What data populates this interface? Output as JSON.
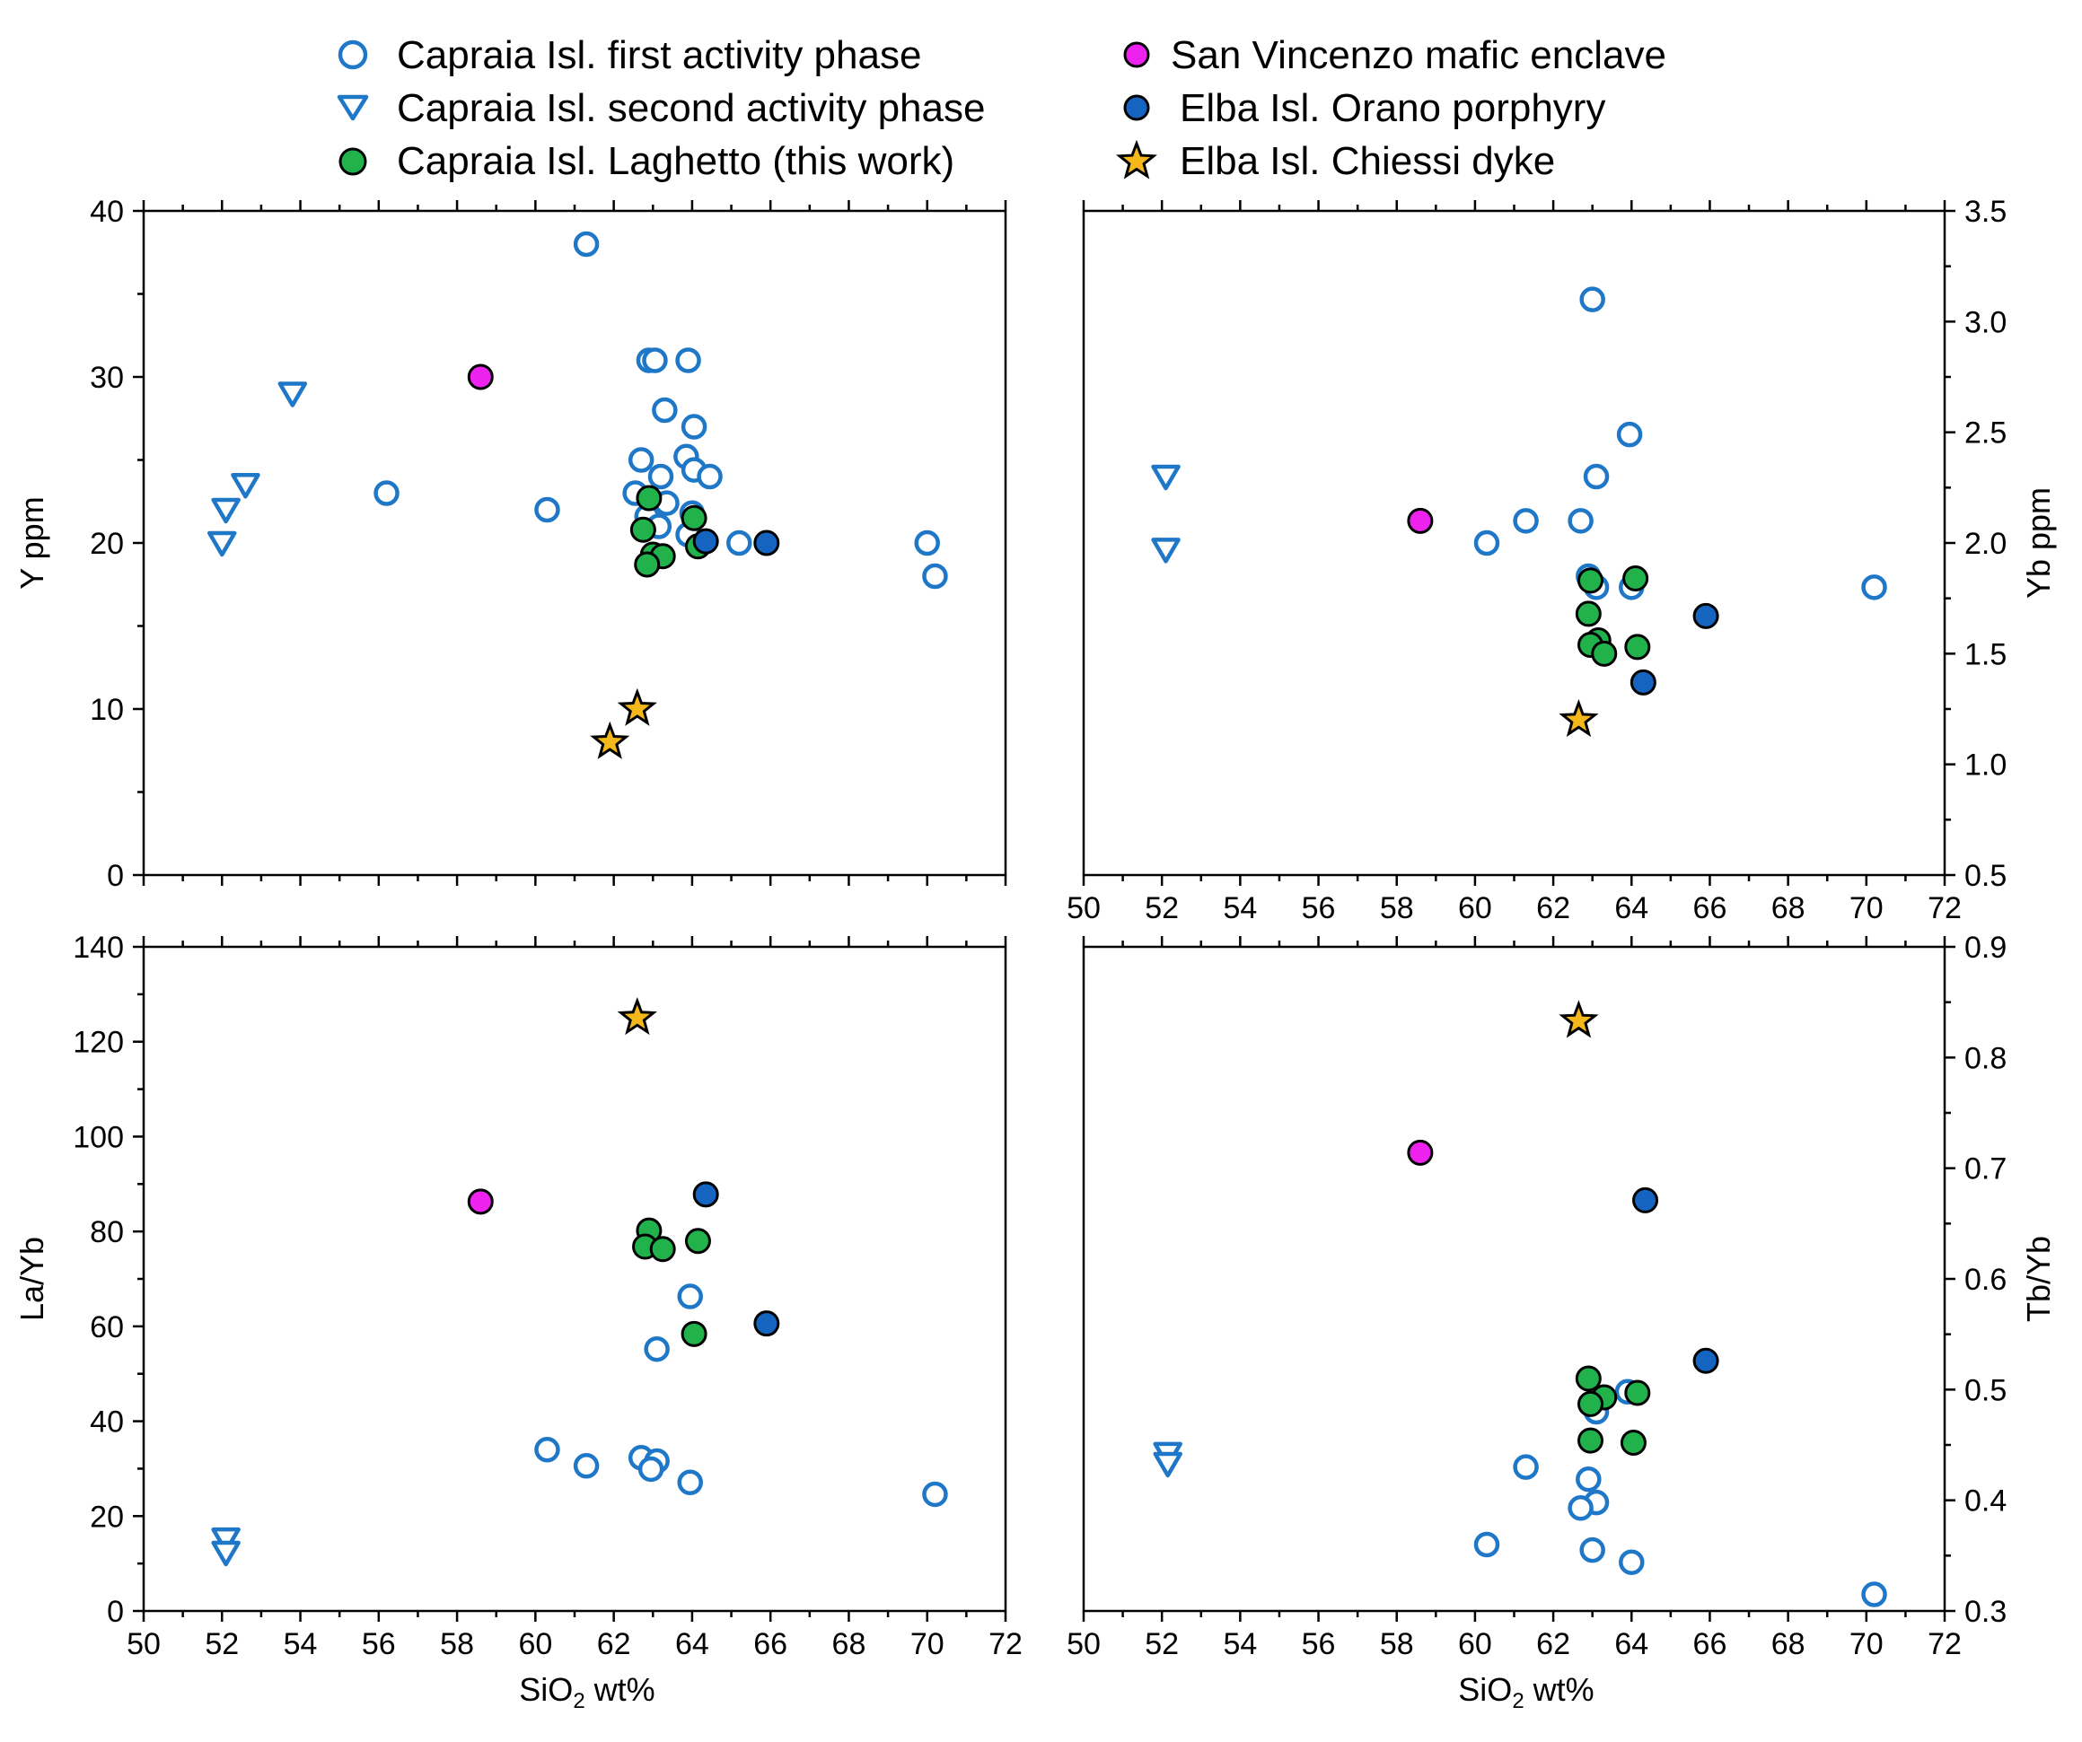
{
  "legend": [
    {
      "key": "cap1",
      "label": "Capraia Isl. first activity phase"
    },
    {
      "key": "cap2",
      "label": "Capraia Isl. second activity phase"
    },
    {
      "key": "lag",
      "label": "Capraia Isl. Laghetto (this work)"
    },
    {
      "key": "svm",
      "label": "San Vincenzo mafic  enclave"
    },
    {
      "key": "elo",
      "label": "Elba Isl. Orano porphyry"
    },
    {
      "key": "elc",
      "label": "Elba Isl. Chiessi dyke"
    }
  ],
  "colors": {
    "blue": "#1f77c8",
    "green": "#22b24c",
    "magenta": "#ee22ee",
    "darkblue": "#1565c0",
    "gold": "#f5b81a"
  },
  "x_label": {
    "main": "SiO",
    "sub": "2",
    "rest": " wt%"
  },
  "chart_data": [
    {
      "type": "scatter",
      "name": "Y vs SiO2",
      "ylabel": "Y ppm",
      "xlim": [
        50,
        72
      ],
      "ylim": [
        0,
        40
      ],
      "yaxis": "left",
      "xticks": [
        50,
        52,
        54,
        56,
        58,
        60,
        62,
        64,
        66,
        68,
        70,
        72
      ],
      "yticks": [
        0,
        10,
        20,
        30,
        40
      ],
      "ytick_labels": [
        "0",
        "10",
        "20",
        "30",
        "40"
      ],
      "show_xlabels": false,
      "series": {
        "cap1": [
          [
            61.3,
            38
          ],
          [
            62.9,
            31
          ],
          [
            63.05,
            31
          ],
          [
            63.9,
            31
          ],
          [
            63.3,
            28
          ],
          [
            64.05,
            27
          ],
          [
            62.7,
            25
          ],
          [
            63.85,
            25.2
          ],
          [
            64.05,
            24.4
          ],
          [
            63.2,
            24
          ],
          [
            64.45,
            24
          ],
          [
            56.2,
            23
          ],
          [
            62.55,
            23
          ],
          [
            63.35,
            22.4
          ],
          [
            60.3,
            22
          ],
          [
            62.85,
            21.6
          ],
          [
            63.15,
            21
          ],
          [
            64.0,
            21.8
          ],
          [
            63.9,
            20.5
          ],
          [
            65.2,
            20
          ],
          [
            70.0,
            20
          ],
          [
            70.2,
            18
          ]
        ],
        "cap2": [
          [
            53.8,
            29
          ],
          [
            52.6,
            23.5
          ],
          [
            52.1,
            22
          ],
          [
            52.0,
            20
          ]
        ],
        "lag": [
          [
            62.9,
            22.7
          ],
          [
            62.75,
            20.8
          ],
          [
            64.05,
            21.5
          ],
          [
            64.15,
            19.8
          ],
          [
            63.0,
            19.3
          ],
          [
            63.25,
            19.2
          ],
          [
            62.85,
            18.7
          ]
        ],
        "svm": [
          [
            58.6,
            30
          ]
        ],
        "elo": [
          [
            64.35,
            20.1
          ],
          [
            65.9,
            20
          ]
        ],
        "elc": [
          [
            62.6,
            10
          ],
          [
            61.9,
            8
          ]
        ]
      }
    },
    {
      "type": "scatter",
      "name": "Yb vs SiO2",
      "ylabel": "Yb ppm",
      "xlim": [
        50,
        72
      ],
      "ylim": [
        0.5,
        3.5
      ],
      "yaxis": "right",
      "xticks": [
        50,
        52,
        54,
        56,
        58,
        60,
        62,
        64,
        66,
        68,
        70,
        72
      ],
      "yticks": [
        0.5,
        1.0,
        1.5,
        2.0,
        2.5,
        3.0,
        3.5
      ],
      "ytick_labels": [
        "0.5",
        "1.0",
        "1.5",
        "2.0",
        "2.5",
        "3.0",
        "3.5"
      ],
      "show_xlabels": true,
      "series": {
        "cap1": [
          [
            63.0,
            3.1
          ],
          [
            63.95,
            2.49
          ],
          [
            63.1,
            2.3
          ],
          [
            61.3,
            2.1
          ],
          [
            62.7,
            2.1
          ],
          [
            60.3,
            2.0
          ],
          [
            62.9,
            1.85
          ],
          [
            63.1,
            1.8
          ],
          [
            64.0,
            1.8
          ],
          [
            70.2,
            1.8
          ]
        ],
        "cap2": [
          [
            52.1,
            2.3
          ],
          [
            52.1,
            1.97
          ]
        ],
        "lag": [
          [
            62.95,
            1.83
          ],
          [
            64.1,
            1.84
          ],
          [
            62.9,
            1.68
          ],
          [
            63.15,
            1.56
          ],
          [
            62.95,
            1.54
          ],
          [
            63.3,
            1.5
          ],
          [
            64.15,
            1.53
          ]
        ],
        "svm": [
          [
            58.6,
            2.1
          ]
        ],
        "elo": [
          [
            65.9,
            1.67
          ],
          [
            64.3,
            1.37
          ]
        ],
        "elc": [
          [
            62.65,
            1.2
          ]
        ]
      }
    },
    {
      "type": "scatter",
      "name": "La/Yb vs SiO2",
      "ylabel": "La/Yb",
      "xlim": [
        50,
        72
      ],
      "ylim": [
        0,
        140
      ],
      "yaxis": "left",
      "xticks": [
        50,
        52,
        54,
        56,
        58,
        60,
        62,
        64,
        66,
        68,
        70,
        72
      ],
      "yticks": [
        0,
        20,
        40,
        60,
        80,
        100,
        120,
        140
      ],
      "ytick_labels": [
        "0",
        "20",
        "40",
        "60",
        "80",
        "100",
        "120",
        "140"
      ],
      "show_xlabels": true,
      "series": {
        "cap1": [
          [
            63.95,
            66.3
          ],
          [
            63.1,
            55.2
          ],
          [
            60.3,
            34
          ],
          [
            61.3,
            30.6
          ],
          [
            62.7,
            32.3
          ],
          [
            63.1,
            31.6
          ],
          [
            62.95,
            29.9
          ],
          [
            63.95,
            27.1
          ],
          [
            70.2,
            24.6
          ]
        ],
        "cap2": [
          [
            52.1,
            15.1
          ],
          [
            52.1,
            12.3
          ]
        ],
        "lag": [
          [
            62.9,
            80.2
          ],
          [
            62.8,
            76.8
          ],
          [
            63.25,
            76.3
          ],
          [
            64.15,
            78
          ],
          [
            64.05,
            58.4
          ]
        ],
        "svm": [
          [
            58.6,
            86.3
          ]
        ],
        "elo": [
          [
            64.35,
            87.8
          ],
          [
            65.9,
            60.6
          ]
        ],
        "elc": [
          [
            62.6,
            125
          ]
        ]
      }
    },
    {
      "type": "scatter",
      "name": "Tb/Yb vs SiO2",
      "ylabel": "Tb/Yb",
      "xlim": [
        50,
        72
      ],
      "ylim": [
        0.3,
        0.9
      ],
      "yaxis": "right",
      "xticks": [
        50,
        52,
        54,
        56,
        58,
        60,
        62,
        64,
        66,
        68,
        70,
        72
      ],
      "yticks": [
        0.3,
        0.4,
        0.5,
        0.6,
        0.7,
        0.8,
        0.9
      ],
      "ytick_labels": [
        "0.3",
        "0.4",
        "0.5",
        "0.6",
        "0.7",
        "0.8",
        "0.9"
      ],
      "show_xlabels": true,
      "series": {
        "cap1": [
          [
            63.9,
            0.498
          ],
          [
            63.1,
            0.48
          ],
          [
            61.3,
            0.43
          ],
          [
            62.9,
            0.419
          ],
          [
            63.1,
            0.398
          ],
          [
            62.7,
            0.393
          ],
          [
            60.3,
            0.36
          ],
          [
            63.0,
            0.355
          ],
          [
            64.0,
            0.344
          ],
          [
            70.2,
            0.315
          ]
        ],
        "cap2": [
          [
            52.15,
            0.442
          ],
          [
            52.15,
            0.433
          ]
        ],
        "lag": [
          [
            62.9,
            0.51
          ],
          [
            63.3,
            0.493
          ],
          [
            62.95,
            0.487
          ],
          [
            64.15,
            0.497
          ],
          [
            62.95,
            0.454
          ],
          [
            64.05,
            0.452
          ]
        ],
        "svm": [
          [
            58.6,
            0.714
          ]
        ],
        "elo": [
          [
            64.35,
            0.671
          ],
          [
            65.9,
            0.526
          ]
        ],
        "elc": [
          [
            62.65,
            0.833
          ]
        ]
      }
    }
  ]
}
